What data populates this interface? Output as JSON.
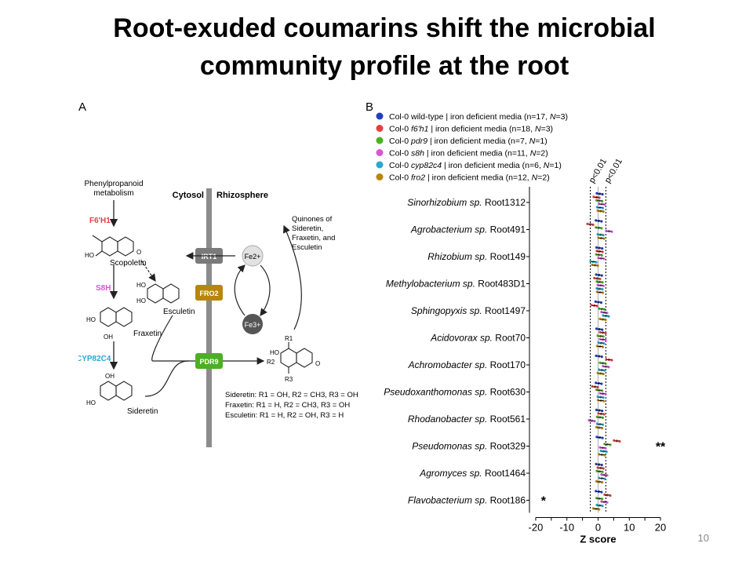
{
  "slide": {
    "title_line1": "Root-exuded coumarins shift the microbial",
    "title_line2": "community profile at the root",
    "page_number": "10"
  },
  "panel_a": {
    "label": "A",
    "phenyl_line1": "Phenylpropanoid",
    "phenyl_line2": "metabolism",
    "cytosol": "Cytosol",
    "rhizosphere": "Rhizosphere",
    "enzymes": [
      {
        "name": "F6'H1",
        "color": "#e34040"
      },
      {
        "name": "S8H",
        "color": "#d657d6"
      },
      {
        "name": "CYP82C4",
        "color": "#2aa8cf"
      }
    ],
    "compounds": [
      "Scopoletin",
      "Esculetin",
      "Fraxetin",
      "Sideretin"
    ],
    "transporters": [
      {
        "name": "IRT1",
        "color": "#7a7a7a"
      },
      {
        "name": "FRO2",
        "color": "#b8860b"
      },
      {
        "name": "PDR9",
        "color": "#4caf25"
      }
    ],
    "fe2": "Fe2+",
    "fe3": "Fe3+",
    "quinones_lines": [
      "Quinones of",
      "Sideretin,",
      "Fraxetin, and",
      "Esculetin"
    ],
    "r_labels": [
      "R1",
      "R2",
      "R3"
    ],
    "legend_lines": [
      "Sideretin: R1 = OH, R2 = CH3, R3 = OH",
      "Fraxetin: R1 = H, R2 = CH3, R3 = OH",
      "Esculetin: R1 = H, R2 = OH, R3 = H"
    ],
    "atoms": {
      "oh": "OH",
      "ho": "HO",
      "o": "O"
    }
  },
  "chart_data": {
    "type": "scatter",
    "panel_label": "B",
    "title": "",
    "xlabel": "Z score",
    "ylabel": "",
    "xlim": [
      -22,
      22
    ],
    "xticks": [
      -20,
      -15,
      -10,
      -5,
      0,
      5,
      10,
      15,
      20
    ],
    "threshold_lines": [
      -2.5,
      2.5
    ],
    "threshold_labels": [
      "p<0.01",
      "p<0.01"
    ],
    "grid": false,
    "legend_position": "top-left",
    "categories": [
      {
        "italic": "Sinorhizobium sp.",
        "strain": "Root1312"
      },
      {
        "italic": "Agrobacterium sp.",
        "strain": "Root491"
      },
      {
        "italic": "Rhizobium sp.",
        "strain": "Root149"
      },
      {
        "italic": "Methylobacterium sp.",
        "strain": "Root483D1"
      },
      {
        "italic": "Sphingopyxis sp.",
        "strain": "Root1497"
      },
      {
        "italic": "Acidovorax sp.",
        "strain": "Root70"
      },
      {
        "italic": "Achromobacter sp.",
        "strain": "Root170"
      },
      {
        "italic": "Pseudoxanthomonas sp.",
        "strain": "Root630"
      },
      {
        "italic": "Rhodanobacter sp.",
        "strain": "Root561"
      },
      {
        "italic": "Pseudomonas sp.",
        "strain": "Root329"
      },
      {
        "italic": "Agromyces sp.",
        "strain": "Root1464"
      },
      {
        "italic": "Flavobacterium sp.",
        "strain": "Root186"
      }
    ],
    "series": [
      {
        "pre": "Col-0 wild-type | iron deficient media (n=17, ",
        "ital": "",
        "post": "",
        "N": "N",
        "tail": "=3)",
        "color": "#1f3fbf",
        "values": [
          0.5,
          0.2,
          0.4,
          0.3,
          0.1,
          0.4,
          0.3,
          0.2,
          0.4,
          0.5,
          0.3,
          0.2
        ]
      },
      {
        "pre": "Col-0 ",
        "ital": "f6'h1",
        "post": " | iron deficient media (n=18, ",
        "N": "N",
        "tail": "=3)",
        "color": "#e34040",
        "values": [
          -0.5,
          -2.5,
          0.5,
          -0.3,
          -1.2,
          1.5,
          3.5,
          -1.0,
          1.0,
          6.0,
          0.8,
          3.0
        ]
      },
      {
        "pre": "Col-0 ",
        "ital": "pdr9",
        "post": " | iron deficient media (n=7, ",
        "N": "N",
        "tail": "=1)",
        "color": "#4caf25",
        "values": [
          0.4,
          0.2,
          0.3,
          0.5,
          1.2,
          0.8,
          1.5,
          0.4,
          0.6,
          3.0,
          0.5,
          0.4
        ]
      },
      {
        "pre": "Col-0 ",
        "ital": "s8h",
        "post": " | iron deficient media (n=11, ",
        "N": "N",
        "tail": "=2)",
        "color": "#d657d6",
        "values": [
          1.2,
          3.5,
          1.0,
          0.8,
          2.0,
          1.5,
          2.5,
          1.5,
          -2.0,
          1.5,
          2.0,
          2.0
        ]
      },
      {
        "pre": "Col-0 ",
        "ital": "cyp82c4",
        "post": " | iron deficient media (n=6, ",
        "N": "N",
        "tail": "=1)",
        "color": "#2aa8cf",
        "values": [
          0.6,
          0.8,
          -1.5,
          0.5,
          2.5,
          1.0,
          1.2,
          0.8,
          0.6,
          1.8,
          1.2,
          0.5
        ]
      },
      {
        "pre": "Col-0 ",
        "ital": "fro2",
        "post": " | iron deficient media (n=12, ",
        "N": "N",
        "tail": "=2)",
        "color": "#b8860b",
        "values": [
          0.8,
          1.0,
          -1.0,
          0.6,
          1.5,
          0.6,
          0.8,
          0.9,
          0.4,
          1.2,
          0.4,
          -0.6
        ]
      }
    ],
    "annotations": [
      {
        "text": "**",
        "row": "Pseudomonas sp. Root329",
        "side": "right"
      },
      {
        "text": "*",
        "row": "Flavobacterium sp. Root186",
        "side": "left"
      }
    ]
  }
}
